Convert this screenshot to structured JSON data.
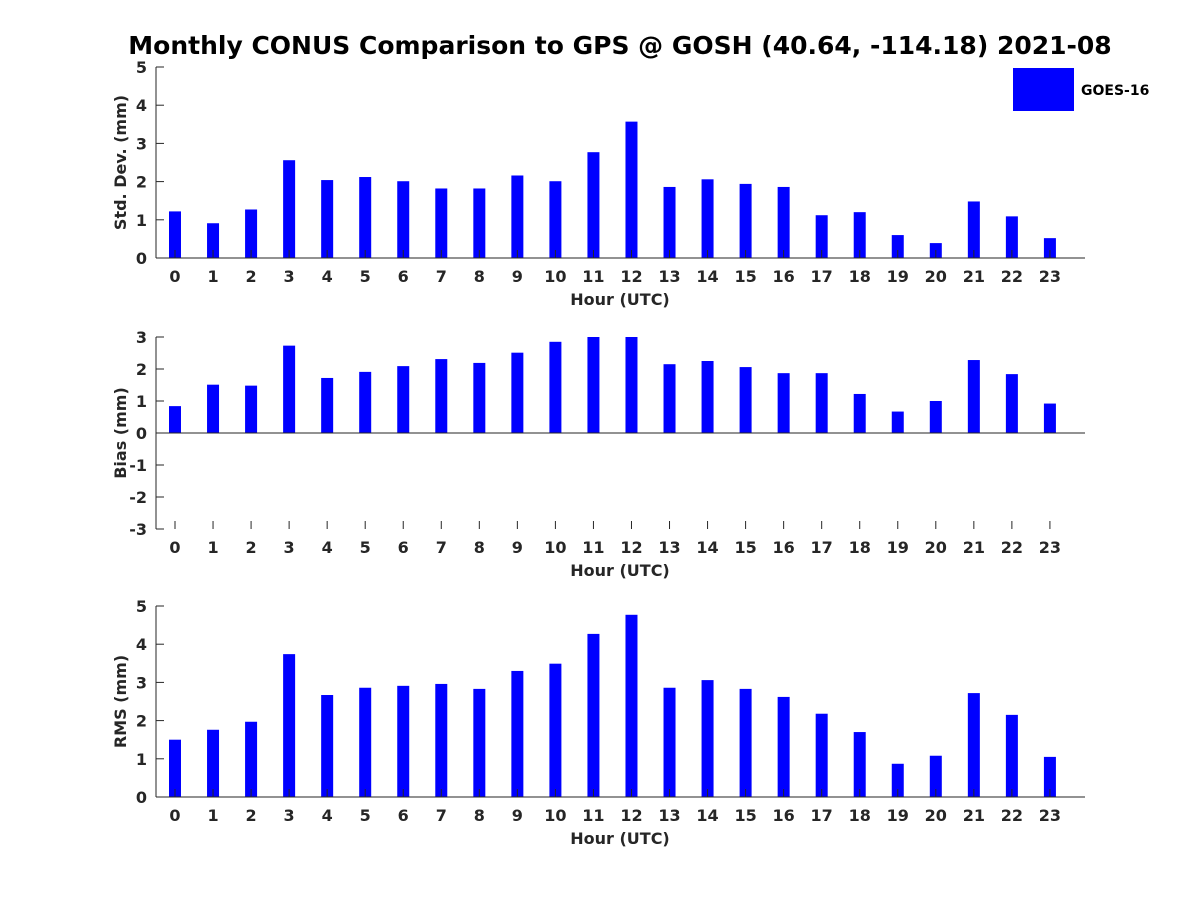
{
  "title": "Monthly CONUS Comparison to GPS @ GOSH (40.64, -114.18) 2021-08",
  "legend": {
    "label": "GOES-16",
    "color": "#0000ff"
  },
  "chart_data": [
    {
      "type": "bar",
      "ylabel": "Std. Dev. (mm)",
      "xlabel": "Hour (UTC)",
      "ylim": [
        0,
        5
      ],
      "yticks": [
        "0",
        "1",
        "2",
        "3",
        "4",
        "5"
      ],
      "categories": [
        "0",
        "1",
        "2",
        "3",
        "4",
        "5",
        "6",
        "7",
        "8",
        "9",
        "10",
        "11",
        "12",
        "13",
        "14",
        "15",
        "16",
        "17",
        "18",
        "19",
        "20",
        "21",
        "22",
        "23"
      ],
      "series": [
        {
          "name": "GOES-16",
          "values": [
            1.22,
            0.91,
            1.27,
            2.56,
            2.04,
            2.12,
            2.01,
            1.82,
            1.82,
            2.16,
            2.01,
            2.77,
            3.57,
            1.86,
            2.06,
            1.94,
            1.86,
            1.12,
            1.2,
            0.6,
            0.39,
            1.48,
            1.09,
            0.52
          ]
        }
      ],
      "show_legend": true
    },
    {
      "type": "bar",
      "ylabel": "Bias (mm)",
      "xlabel": "Hour (UTC)",
      "ylim": [
        -3,
        3
      ],
      "yticks": [
        "-3",
        "-2",
        "-1",
        "0",
        "1",
        "2",
        "3"
      ],
      "categories": [
        "0",
        "1",
        "2",
        "3",
        "4",
        "5",
        "6",
        "7",
        "8",
        "9",
        "10",
        "11",
        "12",
        "13",
        "14",
        "15",
        "16",
        "17",
        "18",
        "19",
        "20",
        "21",
        "22",
        "23"
      ],
      "series": [
        {
          "name": "GOES-16",
          "values": [
            0.84,
            1.51,
            1.48,
            2.73,
            1.72,
            1.91,
            2.09,
            2.31,
            2.19,
            2.51,
            2.85,
            3.0,
            3.0,
            2.15,
            2.25,
            2.06,
            1.87,
            1.87,
            1.22,
            0.67,
            1.0,
            2.28,
            1.84,
            0.92
          ]
        }
      ],
      "show_legend": false
    },
    {
      "type": "bar",
      "ylabel": "RMS (mm)",
      "xlabel": "Hour (UTC)",
      "ylim": [
        0,
        5
      ],
      "yticks": [
        "0",
        "1",
        "2",
        "3",
        "4",
        "5"
      ],
      "categories": [
        "0",
        "1",
        "2",
        "3",
        "4",
        "5",
        "6",
        "7",
        "8",
        "9",
        "10",
        "11",
        "12",
        "13",
        "14",
        "15",
        "16",
        "17",
        "18",
        "19",
        "20",
        "21",
        "22",
        "23"
      ],
      "series": [
        {
          "name": "GOES-16",
          "values": [
            1.5,
            1.76,
            1.97,
            3.74,
            2.67,
            2.86,
            2.91,
            2.96,
            2.83,
            3.3,
            3.49,
            4.27,
            4.77,
            2.86,
            3.06,
            2.83,
            2.62,
            2.18,
            1.7,
            0.87,
            1.08,
            2.72,
            2.15,
            1.05
          ]
        }
      ],
      "show_legend": false
    }
  ]
}
